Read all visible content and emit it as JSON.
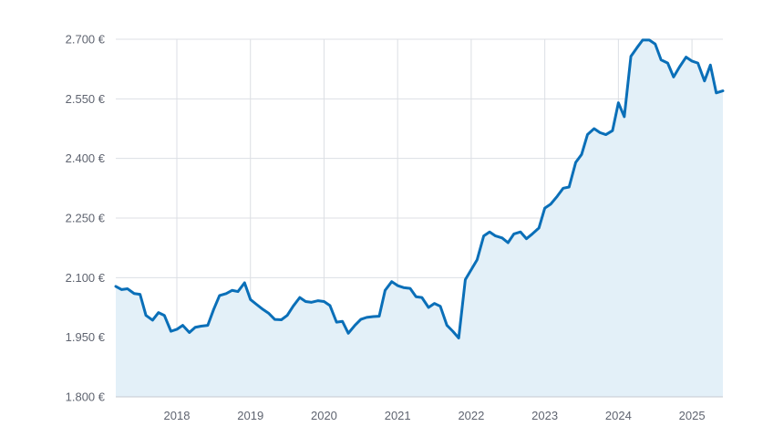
{
  "chart_data": {
    "type": "area",
    "title": "",
    "xlabel": "",
    "ylabel": "",
    "x_ticks": [
      "2018",
      "2019",
      "2020",
      "2021",
      "2022",
      "2023",
      "2024",
      "2025"
    ],
    "y_ticks": [
      "1.800 €",
      "1.950 €",
      "2.100 €",
      "2.250 €",
      "2.400 €",
      "2.550 €",
      "2.700 €"
    ],
    "ylim": [
      1800,
      2700
    ],
    "xlim": [
      2017.17,
      2025.42
    ],
    "grid": true,
    "legend": "none",
    "colors": {
      "line": "#0a6fb8",
      "fill": "#e3f0f8",
      "grid": "#dcdfe4",
      "text": "#5f6470"
    },
    "series": [
      {
        "x": [
          2017.17,
          2017.25,
          2017.33,
          2017.42,
          2017.5,
          2017.58,
          2017.67,
          2017.75,
          2017.83,
          2017.92,
          2018.0,
          2018.08,
          2018.17,
          2018.25,
          2018.33,
          2018.42,
          2018.5,
          2018.58,
          2018.67,
          2018.75,
          2018.83,
          2018.92,
          2019.0,
          2019.08,
          2019.17,
          2019.25,
          2019.33,
          2019.42,
          2019.5,
          2019.58,
          2019.67,
          2019.75,
          2019.83,
          2019.92,
          2020.0,
          2020.08,
          2020.17,
          2020.25,
          2020.33,
          2020.42,
          2020.5,
          2020.58,
          2020.67,
          2020.75,
          2020.83,
          2020.92,
          2021.0,
          2021.08,
          2021.17,
          2021.25,
          2021.33,
          2021.42,
          2021.5,
          2021.58,
          2021.67,
          2021.75,
          2021.83,
          2021.92,
          2022.0,
          2022.08,
          2022.17,
          2022.25,
          2022.33,
          2022.42,
          2022.5,
          2022.58,
          2022.67,
          2022.75,
          2022.83,
          2022.92,
          2023.0,
          2023.08,
          2023.17,
          2023.25,
          2023.33,
          2023.42,
          2023.5,
          2023.58,
          2023.67,
          2023.75,
          2023.83,
          2023.92,
          2024.0,
          2024.08,
          2024.17,
          2024.25,
          2024.33,
          2024.42,
          2024.5,
          2024.58,
          2024.67,
          2024.75,
          2024.83,
          2024.92,
          2025.0,
          2025.08,
          2025.17,
          2025.25,
          2025.33,
          2025.42
        ],
        "values": [
          2078,
          2070,
          2072,
          2060,
          2058,
          2005,
          1993,
          2012,
          2005,
          1965,
          1970,
          1980,
          1962,
          1975,
          1978,
          1980,
          2020,
          2055,
          2060,
          2068,
          2065,
          2087,
          2045,
          2033,
          2020,
          2010,
          1995,
          1994,
          2005,
          2028,
          2050,
          2040,
          2038,
          2042,
          2040,
          2030,
          1988,
          1990,
          1960,
          1980,
          1995,
          2000,
          2002,
          2003,
          2068,
          2090,
          2080,
          2075,
          2073,
          2052,
          2050,
          2025,
          2035,
          2028,
          1980,
          1965,
          1948,
          2095,
          2120,
          2145,
          2205,
          2215,
          2205,
          2200,
          2188,
          2210,
          2215,
          2198,
          2210,
          2225,
          2275,
          2285,
          2305,
          2325,
          2328,
          2390,
          2410,
          2460,
          2475,
          2465,
          2460,
          2470,
          2540,
          2505,
          2657,
          2678,
          2698,
          2698,
          2688,
          2648,
          2640,
          2605,
          2630,
          2655,
          2645,
          2640,
          2595,
          2635,
          2565,
          2570
        ]
      }
    ]
  }
}
